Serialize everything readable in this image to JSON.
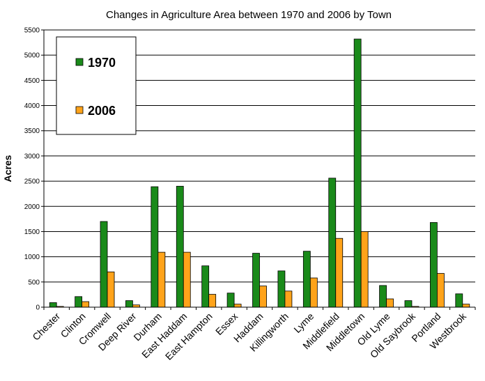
{
  "chart_data": {
    "type": "bar",
    "title": "Changes in Agriculture Area between 1970 and 2006 by Town",
    "xlabel": "",
    "ylabel": "Acres",
    "ylim": [
      0,
      5500
    ],
    "yticks": [
      0,
      500,
      1000,
      1500,
      2000,
      2500,
      3000,
      3500,
      4000,
      4500,
      5000,
      5500
    ],
    "grid": true,
    "legend_position": "top-left",
    "categories": [
      "Chester",
      "Clinton",
      "Cromwell",
      "Deep River",
      "Durham",
      "East Haddam",
      "East Hampton",
      "Essex",
      "Haddam",
      "Killingworth",
      "Lyme",
      "Middlefield",
      "Middletown",
      "Old Lyme",
      "Old Saybrook",
      "Portland",
      "Westbrook"
    ],
    "series": [
      {
        "name": "1970",
        "color": "#1a8a1a",
        "values": [
          90,
          210,
          1700,
          130,
          2390,
          2400,
          820,
          280,
          1070,
          720,
          1110,
          2560,
          5320,
          430,
          130,
          1680,
          265
        ]
      },
      {
        "name": "2006",
        "color": "#ffa31a",
        "values": [
          15,
          110,
          700,
          45,
          1090,
          1090,
          255,
          60,
          420,
          320,
          580,
          1365,
          1500,
          165,
          15,
          670,
          60
        ]
      }
    ]
  }
}
